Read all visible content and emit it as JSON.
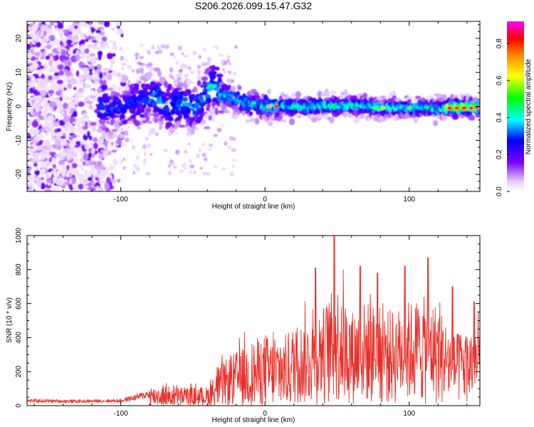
{
  "figure": {
    "title": "S206.2026.099.15.47.G32"
  },
  "colors": {
    "snr_line": "#e8302a",
    "frame": "#000000",
    "colormap": [
      "#ffffff",
      "#7d00ff",
      "#0000ff",
      "#00ffff",
      "#00ff00",
      "#ffff00",
      "#ff8800",
      "#ff0000",
      "#ff00ff"
    ]
  },
  "chart_data": [
    {
      "type": "heatmap",
      "name": "spectrogram",
      "xlabel": "Height of straight line (km)",
      "ylabel": "Frequency (Hz)",
      "xlim": [
        -165,
        149
      ],
      "ylim": [
        -25,
        25
      ],
      "xticks": [
        {
          "value": -100,
          "label": "-100"
        },
        {
          "value": 0,
          "label": "0"
        },
        {
          "value": 100,
          "label": "100"
        }
      ],
      "yticks": [
        {
          "value": 20,
          "label": "20"
        },
        {
          "value": 10,
          "label": "10"
        },
        {
          "value": 0,
          "label": "0"
        },
        {
          "value": -10,
          "label": "-10"
        },
        {
          "value": -20,
          "label": "-20"
        }
      ],
      "ridge": {
        "x": [
          -110,
          -95,
          -85,
          -75,
          -68,
          -62,
          -58,
          -52,
          -46,
          -42,
          -38,
          -35,
          -33,
          -30,
          -25,
          -20,
          -10,
          0,
          10,
          20,
          30,
          40,
          50,
          60,
          70,
          80,
          90,
          100,
          110,
          120,
          130,
          140,
          148
        ],
        "freq": [
          -0.5,
          0,
          2,
          3,
          0,
          0.5,
          1,
          0,
          0,
          3,
          5.5,
          6.5,
          6,
          4,
          3,
          2,
          0.5,
          0,
          0,
          0,
          -0.3,
          0.3,
          0,
          0.5,
          0,
          -0.5,
          -0.3,
          -0.5,
          -0.3,
          -0.6,
          -0.3,
          -0.3,
          -0.3
        ]
      },
      "colorbar": {
        "label": "Normalized spectral amplitude",
        "range": [
          0,
          0.92
        ],
        "ticks": [
          {
            "value": 0.0,
            "label": "0.0"
          },
          {
            "value": 0.2,
            "label": "0.2"
          },
          {
            "value": 0.4,
            "label": "0.4"
          },
          {
            "value": 0.6,
            "label": "0.6"
          },
          {
            "value": 0.8,
            "label": "0.8"
          }
        ]
      }
    },
    {
      "type": "line",
      "name": "snr",
      "xlabel": "Height of straight line (km)",
      "ylabel": "SNR (10 * v/v)",
      "xlim": [
        -165,
        149
      ],
      "ylim": [
        0,
        1000
      ],
      "xticks": [
        {
          "value": -100,
          "label": "-100"
        },
        {
          "value": 0,
          "label": "0"
        },
        {
          "value": 100,
          "label": "100"
        }
      ],
      "yticks": [
        {
          "value": 0,
          "label": "0"
        },
        {
          "value": 200,
          "label": "200"
        },
        {
          "value": 400,
          "label": "400"
        },
        {
          "value": 600,
          "label": "600"
        },
        {
          "value": 800,
          "label": "800"
        },
        {
          "value": 1000,
          "label": "1000"
        }
      ],
      "series": [
        {
          "name": "SNR",
          "envelope_x": [
            -165,
            -130,
            -100,
            -85,
            -75,
            -60,
            -50,
            -45,
            -40,
            -30,
            -20,
            -10,
            0,
            10,
            20,
            30,
            40,
            50,
            60,
            70,
            80,
            90,
            100,
            110,
            120,
            130,
            140,
            149
          ],
          "envelope_y": [
            40,
            35,
            40,
            80,
            120,
            110,
            110,
            110,
            110,
            250,
            320,
            380,
            420,
            380,
            480,
            500,
            580,
            720,
            560,
            620,
            580,
            560,
            620,
            640,
            600,
            420,
            450,
            450
          ],
          "peaks": [
            {
              "x": 48,
              "y": 1000
            },
            {
              "x": 113,
              "y": 870
            },
            {
              "x": 35,
              "y": 810
            },
            {
              "x": 97,
              "y": 820
            },
            {
              "x": 66,
              "y": 820
            },
            {
              "x": 78,
              "y": 780
            },
            {
              "x": 130,
              "y": 700
            },
            {
              "x": 145,
              "y": 610
            }
          ]
        }
      ]
    }
  ]
}
